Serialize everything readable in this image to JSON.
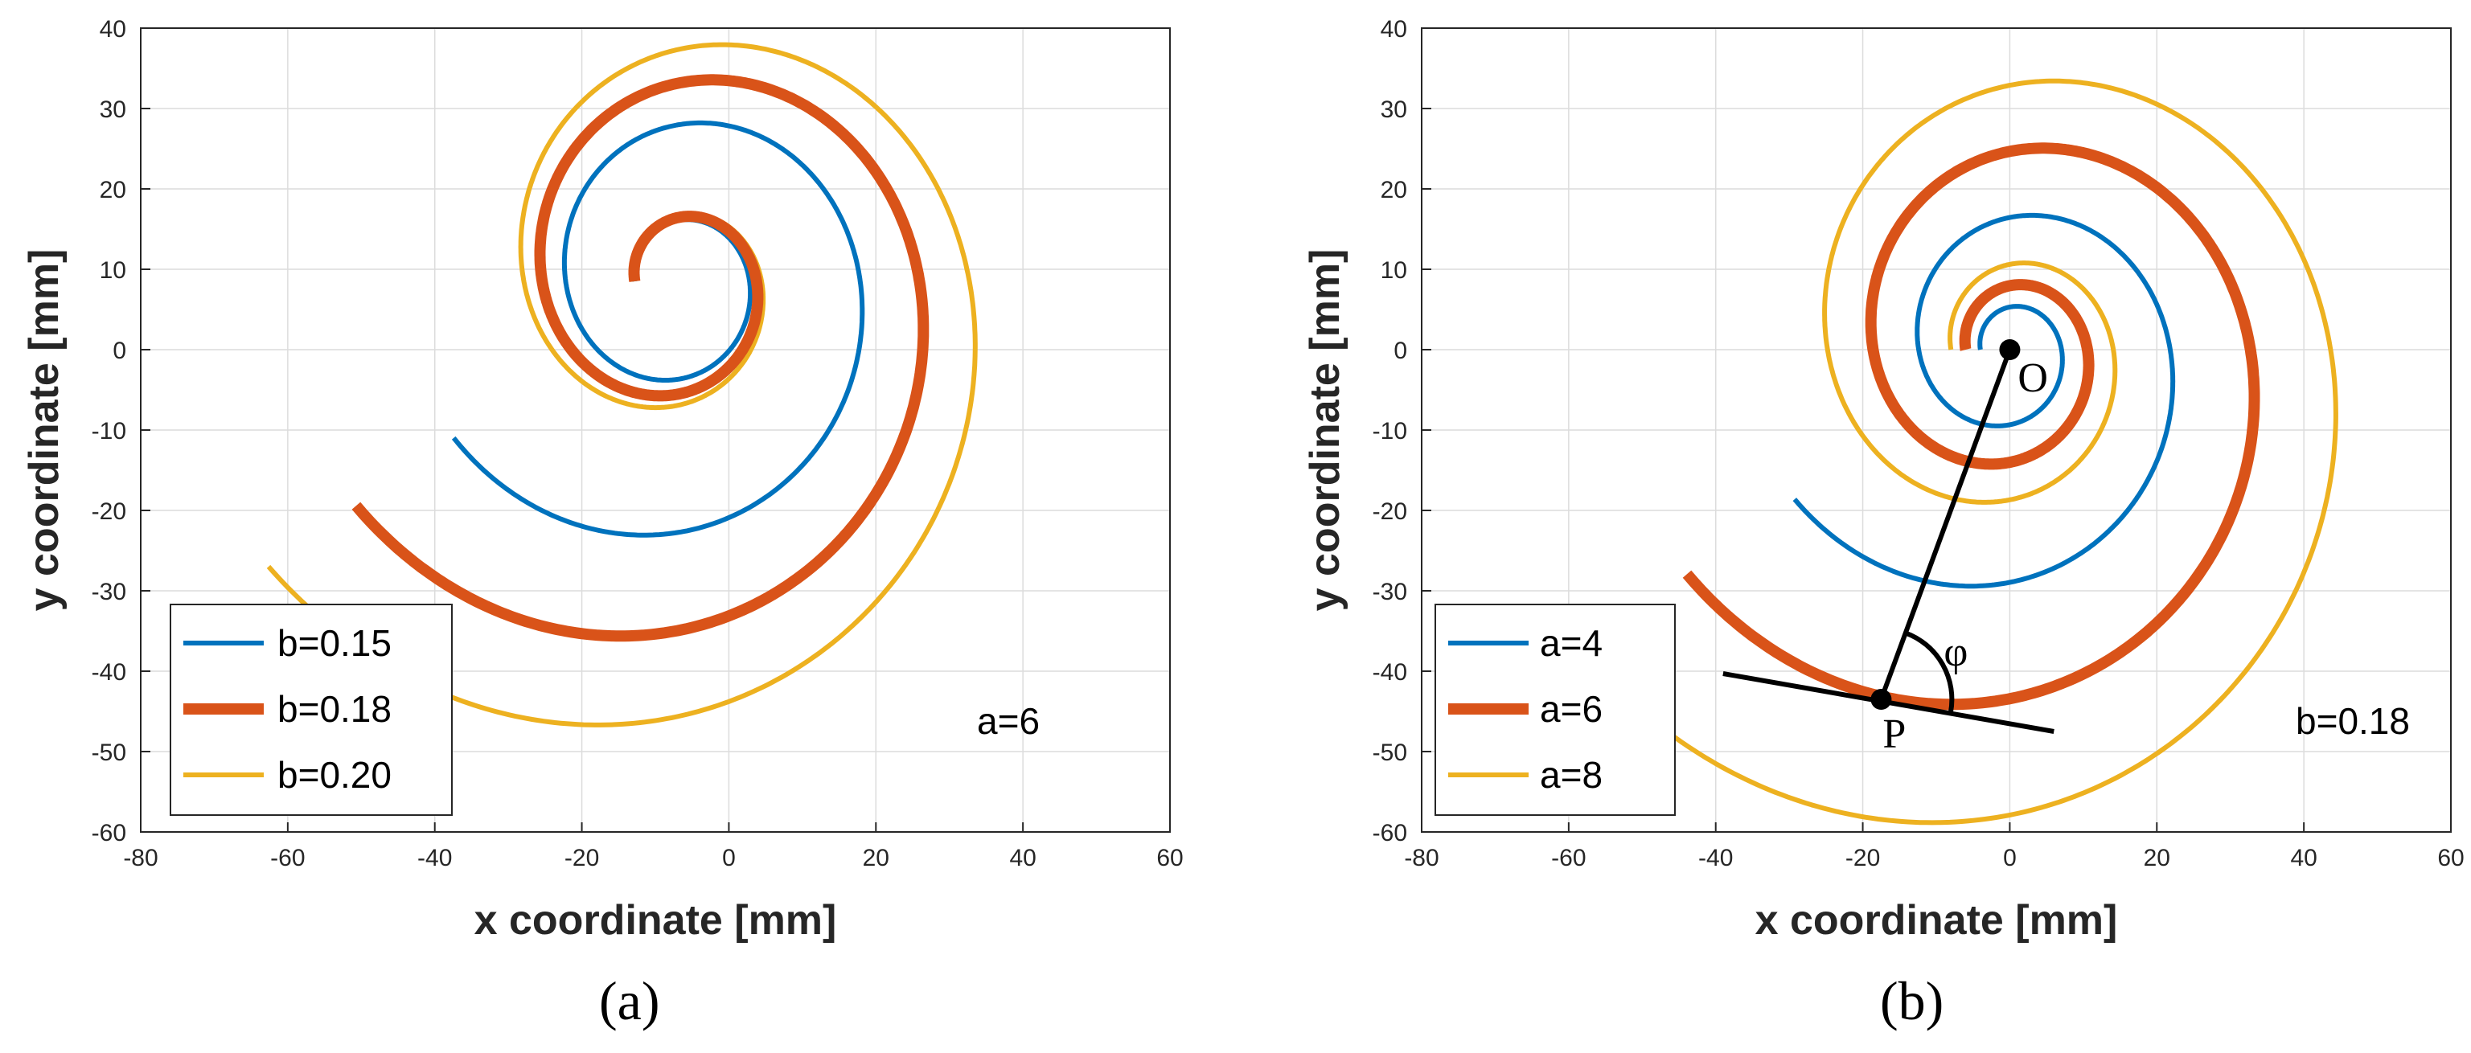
{
  "chart_data": [
    {
      "type": "line",
      "panel_label": "(a)",
      "xlabel": "x coordinate [mm]",
      "ylabel": "y coordinate [mm]",
      "xlim": [
        -80,
        60
      ],
      "ylim": [
        -60,
        40
      ],
      "xticks": [
        -80,
        -60,
        -40,
        -20,
        0,
        20,
        40,
        60
      ],
      "yticks": [
        -60,
        -50,
        -40,
        -30,
        -20,
        -10,
        0,
        10,
        20,
        30,
        40
      ],
      "grid": true,
      "legend_location": "lower-left",
      "annotation": "a=6",
      "spiral": {
        "theta_max": 12.0,
        "x_center": -6.8,
        "y_center": 8.5,
        "x_sign": -1
      },
      "series": [
        {
          "name": "b=0.15",
          "a": 6,
          "b": 0.15,
          "color": "#0072BD",
          "weight": "normal"
        },
        {
          "name": "b=0.18",
          "a": 6,
          "b": 0.18,
          "color": "#D95319",
          "weight": "bold"
        },
        {
          "name": "b=0.20",
          "a": 6,
          "b": 0.2,
          "color": "#EDB120",
          "weight": "normal"
        }
      ]
    },
    {
      "type": "line",
      "panel_label": "(b)",
      "xlabel": "x coordinate [mm]",
      "ylabel": "y coordinate [mm]",
      "xlim": [
        -80,
        60
      ],
      "ylim": [
        -60,
        40
      ],
      "xticks": [
        -80,
        -60,
        -40,
        -20,
        0,
        20,
        40,
        60
      ],
      "yticks": [
        -60,
        -50,
        -40,
        -30,
        -20,
        -10,
        0,
        10,
        20,
        30,
        40
      ],
      "grid": true,
      "legend_location": "lower-left",
      "annotation": "b=0.18",
      "spiral": {
        "theta_max": 12.0,
        "x_center": 0,
        "y_center": 0,
        "x_sign": -1
      },
      "series": [
        {
          "name": "a=4",
          "a": 4,
          "b": 0.18,
          "color": "#0072BD",
          "weight": "normal"
        },
        {
          "name": "a=6",
          "a": 6,
          "b": 0.18,
          "color": "#D95319",
          "weight": "bold"
        },
        {
          "name": "a=8",
          "a": 8,
          "b": 0.18,
          "color": "#EDB120",
          "weight": "normal"
        }
      ],
      "markers": {
        "origin": {
          "label": "O",
          "x": 0,
          "y": 0
        },
        "point": {
          "label": "P",
          "x": -17.5,
          "y": -43.5
        },
        "tangent_line": {
          "x1": -39,
          "y1": -40.3,
          "x2": 6,
          "y2": -47.5
        },
        "angle_label": "φ"
      }
    }
  ]
}
